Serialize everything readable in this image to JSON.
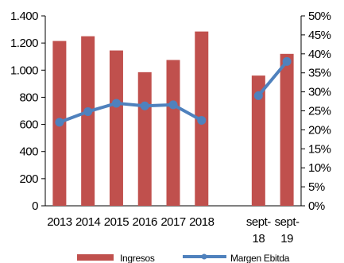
{
  "chart_data": {
    "type": "bar",
    "categories": [
      "2013",
      "2014",
      "2015",
      "2016",
      "2017",
      "2018",
      "",
      "sept-18",
      "sept-19"
    ],
    "category_label_lines": [
      [
        "2013"
      ],
      [
        "2014"
      ],
      [
        "2015"
      ],
      [
        "2016"
      ],
      [
        "2017"
      ],
      [
        "2018"
      ],
      [
        ""
      ],
      [
        "sept-",
        "18"
      ],
      [
        "sept-",
        "19"
      ]
    ],
    "series": [
      {
        "name": "Ingresos",
        "type": "bar",
        "axis": "left",
        "color": "#c0504d",
        "values": [
          1215,
          1250,
          1145,
          985,
          1075,
          1285,
          null,
          960,
          1120
        ]
      },
      {
        "name": "Margen Ebitda",
        "type": "line",
        "axis": "right",
        "color": "#4f81bd",
        "values": [
          0.22,
          0.248,
          0.27,
          0.263,
          0.266,
          0.225,
          null,
          0.29,
          0.38
        ]
      }
    ],
    "y_left": {
      "ylim": [
        0,
        1400
      ],
      "ticks": [
        0,
        200,
        400,
        600,
        800,
        1000,
        1200,
        1400
      ],
      "tick_labels": [
        "0",
        "200",
        "400",
        "600",
        "800",
        "1.000",
        "1.200",
        "1.400"
      ]
    },
    "y_right": {
      "ylim": [
        0,
        0.5
      ],
      "ticks": [
        0,
        0.05,
        0.1,
        0.15,
        0.2,
        0.25,
        0.3,
        0.35,
        0.4,
        0.45,
        0.5
      ],
      "tick_labels": [
        "0%",
        "5%",
        "10%",
        "15%",
        "20%",
        "25%",
        "30%",
        "35%",
        "40%",
        "45%",
        "50%"
      ]
    },
    "grid": false,
    "legend": "bottom"
  }
}
